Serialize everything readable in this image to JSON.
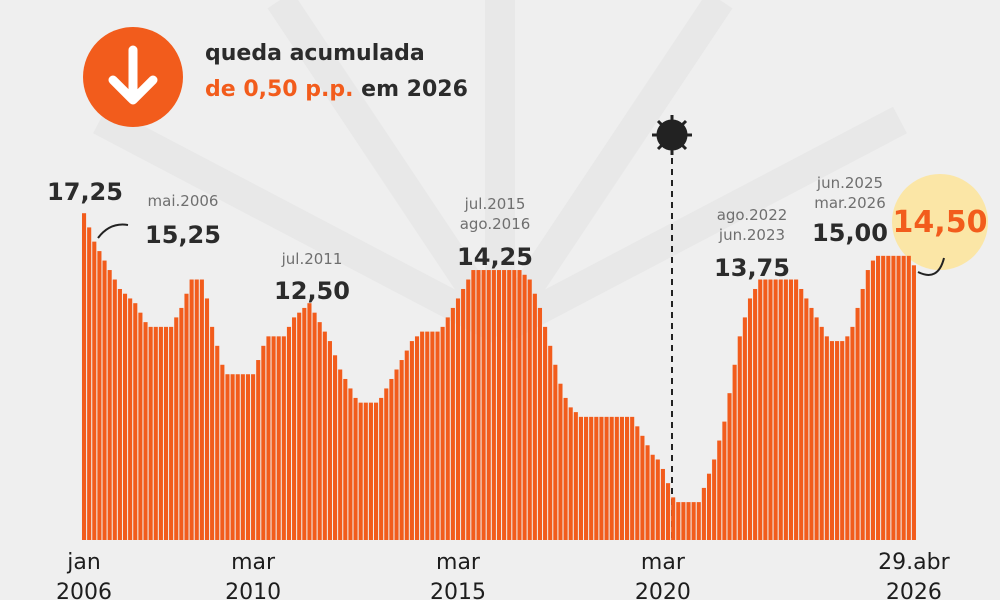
{
  "header": {
    "line1": "queda acumulada",
    "highlight": "de 0,50 p.p.",
    "rest": "em 2026"
  },
  "chart_data": {
    "type": "bar",
    "color": "#f25c1c",
    "ylim": [
      0,
      18
    ],
    "values": [
      17.25,
      16.5,
      15.75,
      15.25,
      14.75,
      14.25,
      13.75,
      13.25,
      13,
      12.75,
      12.5,
      12,
      11.5,
      11.25,
      11.25,
      11.25,
      11.25,
      11.25,
      11.75,
      12.25,
      13,
      13.75,
      13.75,
      13.75,
      12.75,
      11.25,
      10.25,
      9.25,
      8.75,
      8.75,
      8.75,
      8.75,
      8.75,
      8.75,
      9.5,
      10.25,
      10.75,
      10.75,
      10.75,
      10.75,
      11.25,
      11.75,
      12,
      12.25,
      12.5,
      12,
      11.5,
      11,
      10.5,
      9.75,
      9,
      8.5,
      8,
      7.5,
      7.25,
      7.25,
      7.25,
      7.25,
      7.5,
      8,
      8.5,
      9,
      9.5,
      10,
      10.5,
      10.75,
      11,
      11,
      11,
      11,
      11.25,
      11.75,
      12.25,
      12.75,
      13.25,
      13.75,
      14.25,
      14.25,
      14.25,
      14.25,
      14.25,
      14.25,
      14.25,
      14.25,
      14.25,
      14.25,
      14,
      13.75,
      13,
      12.25,
      11.25,
      10.25,
      9.25,
      8.25,
      7.5,
      7,
      6.75,
      6.5,
      6.5,
      6.5,
      6.5,
      6.5,
      6.5,
      6.5,
      6.5,
      6.5,
      6.5,
      6.5,
      6,
      5.5,
      5,
      4.5,
      4.25,
      3.75,
      3,
      2.25,
      2,
      2,
      2,
      2,
      2,
      2.75,
      3.5,
      4.25,
      5.25,
      6.25,
      7.75,
      9.25,
      10.75,
      11.75,
      12.75,
      13.25,
      13.75,
      13.75,
      13.75,
      13.75,
      13.75,
      13.75,
      13.75,
      13.75,
      13.25,
      12.75,
      12.25,
      11.75,
      11.25,
      10.75,
      10.5,
      10.5,
      10.5,
      10.75,
      11.25,
      12.25,
      13.25,
      14.25,
      14.75,
      15,
      15,
      15,
      15,
      15,
      15,
      15,
      14.5
    ],
    "x_labels": [
      {
        "index": 0,
        "label": "jan\n2006"
      },
      {
        "index": 33,
        "label": "mar\n2010"
      },
      {
        "index": 73,
        "label": "mar\n2015"
      },
      {
        "index": 113,
        "label": "mar\n2020"
      },
      {
        "index": 162,
        "label": "29.abr\n2026"
      }
    ],
    "annotations": [
      {
        "label": "17,25"
      },
      {
        "date": "mai.2006",
        "label": "15,25"
      },
      {
        "date": "jul.2011",
        "label": "12,50"
      },
      {
        "date": "jul.2015\nago.2016",
        "label": "14,25"
      },
      {
        "date": "ago.2022\njun.2023",
        "label": "13,75"
      },
      {
        "date": "jun.2025\nmar.2026",
        "label": "15,00"
      },
      {
        "label": "14,50"
      }
    ]
  }
}
